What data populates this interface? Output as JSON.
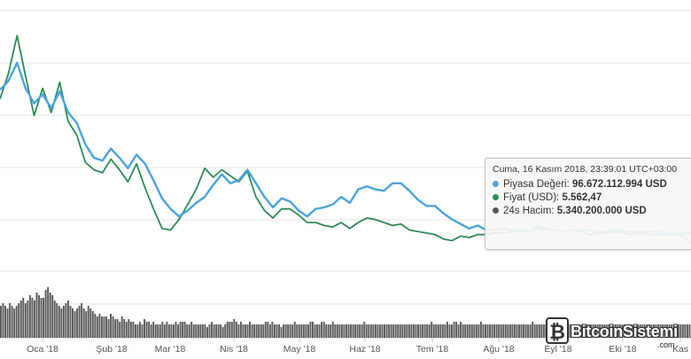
{
  "chart_data": {
    "type": "line",
    "x_ticks": [
      "Oca '18",
      "Şub '18",
      "Mar '18",
      "Nis '18",
      "May '18",
      "Haz '18",
      "Tem '18",
      "Ağu '18",
      "Eyl '18",
      "Eki '18",
      "Kas"
    ],
    "series": [
      {
        "name": "Piyasa Değeri",
        "color": "#4aa3df",
        "kind": "line",
        "values": [
          15800,
          16400,
          17600,
          15900,
          14900,
          15500,
          14600,
          15700,
          14300,
          13600,
          12200,
          11300,
          11100,
          11900,
          11300,
          10600,
          11500,
          10900,
          9800,
          8600,
          7900,
          7400,
          7800,
          8300,
          8700,
          9500,
          10200,
          9600,
          9800,
          10500,
          9600,
          8700,
          8000,
          8600,
          8400,
          7800,
          7400,
          7900,
          8000,
          8200,
          8700,
          8300,
          9200,
          9400,
          9200,
          9100,
          9600,
          9600,
          9100,
          8500,
          8100,
          8100,
          7600,
          7200,
          6900,
          6600,
          6800,
          6500,
          6500,
          6600,
          6500,
          6400,
          6400,
          6600,
          6500,
          6500,
          6400,
          6500,
          6400,
          6500,
          6400,
          6400,
          6500,
          6400,
          6400,
          6400,
          6400,
          6400,
          6300,
          6300,
          6300,
          6300
        ]
      },
      {
        "name": "Fiyat (USD)",
        "color": "#2e8b57",
        "kind": "line",
        "values": [
          15200,
          16900,
          19400,
          16700,
          14100,
          15900,
          14300,
          16300,
          13700,
          12800,
          11000,
          10500,
          10300,
          11200,
          10500,
          9700,
          10900,
          9300,
          7900,
          6600,
          6500,
          7200,
          8200,
          9200,
          10600,
          10000,
          10500,
          10100,
          9700,
          10400,
          8700,
          7800,
          7300,
          7900,
          7900,
          7500,
          7000,
          7000,
          6800,
          6700,
          7000,
          6600,
          7000,
          7300,
          7200,
          7000,
          6800,
          6900,
          6500,
          6400,
          6300,
          6200,
          5900,
          5800,
          6100,
          6000,
          6200,
          6200,
          6300,
          6300,
          6400,
          6500,
          6400,
          6800,
          6600,
          6500,
          6400,
          6500,
          6500,
          6200,
          6300,
          6300,
          6400,
          6300,
          6200,
          6300,
          6200,
          6200,
          6200,
          6200,
          6100,
          5600
        ]
      },
      {
        "name": "24s Hacim",
        "color": "#555555",
        "kind": "bar",
        "values": [
          12,
          13,
          12,
          11,
          13,
          12,
          11,
          12,
          13,
          14,
          15,
          13,
          14,
          16,
          15,
          14,
          17,
          16,
          15,
          15,
          18,
          19,
          17,
          16,
          14,
          13,
          12,
          11,
          12,
          13,
          14,
          12,
          11,
          10,
          11,
          12,
          13,
          11,
          10,
          12,
          11,
          10,
          9,
          8,
          9,
          8,
          8,
          8,
          7,
          9,
          8,
          7,
          7,
          6,
          8,
          7,
          6,
          7,
          6,
          6,
          5,
          5,
          6,
          5,
          7,
          6,
          6,
          5,
          6,
          5,
          5,
          5,
          6,
          5,
          6,
          5,
          5,
          5,
          6,
          5,
          6,
          6,
          6,
          5,
          5,
          6,
          5,
          5,
          5,
          5,
          5,
          5,
          4,
          5,
          6,
          5,
          5,
          5,
          5,
          4,
          5,
          6,
          6,
          6,
          7,
          6,
          5,
          6,
          5,
          5,
          5,
          6,
          5,
          5,
          5,
          5,
          5,
          5,
          6,
          6,
          5,
          6,
          5,
          5,
          5,
          4,
          5,
          5,
          5,
          5,
          5,
          6,
          5,
          5,
          5,
          5,
          5,
          5,
          6,
          6,
          5,
          5,
          5,
          6,
          6,
          5,
          5,
          5,
          6,
          5,
          5,
          5,
          5,
          5,
          5,
          5,
          5,
          5,
          5,
          5,
          5,
          5,
          6,
          5,
          5,
          5,
          5,
          5,
          5,
          5,
          5,
          5,
          5,
          5,
          5,
          5,
          5,
          5,
          5,
          5,
          5,
          5,
          5,
          5,
          5,
          5,
          5,
          5,
          5,
          5,
          5,
          5,
          6,
          5,
          5,
          5,
          5,
          5,
          5,
          6,
          5,
          5,
          6,
          6,
          5,
          6,
          5,
          5,
          5,
          5,
          5,
          5,
          5,
          5,
          6,
          5,
          5,
          5,
          5,
          5,
          5,
          5,
          5,
          5,
          5,
          5,
          5,
          5,
          5,
          5,
          5,
          5,
          5,
          5,
          5,
          5,
          5,
          6,
          5,
          5,
          5,
          5,
          5,
          5,
          5,
          5,
          5,
          5,
          5,
          5,
          5,
          5,
          5,
          5,
          5,
          5,
          5,
          5,
          5,
          5,
          5,
          5,
          5,
          5,
          5,
          5,
          5,
          5,
          5,
          5,
          5,
          5,
          5,
          5,
          5,
          5,
          5,
          5,
          5,
          5,
          5,
          5,
          5,
          5,
          5,
          5,
          5,
          5,
          5,
          5,
          5,
          5,
          5,
          5,
          5,
          5,
          5,
          5,
          5,
          5,
          5,
          5,
          5,
          5,
          5,
          5,
          5,
          5
        ]
      }
    ],
    "grid": true,
    "legend": "none"
  },
  "tooltip": {
    "header": "Cuma, 16 Kasım 2018, 23:39:01 UTC+03:00",
    "rows": [
      {
        "label": "Piyasa Değeri: ",
        "value": "96.672.112.994 USD",
        "color": "#4aa3df"
      },
      {
        "label": "Fiyat (USD): ",
        "value": "5.562,47",
        "color": "#2e8b57"
      },
      {
        "label": "24s Hacim: ",
        "value": "5.340.200.000 USD",
        "color": "#555555"
      }
    ]
  },
  "watermark": {
    "text": "BitcoinSistemi",
    "tld": ".com"
  }
}
